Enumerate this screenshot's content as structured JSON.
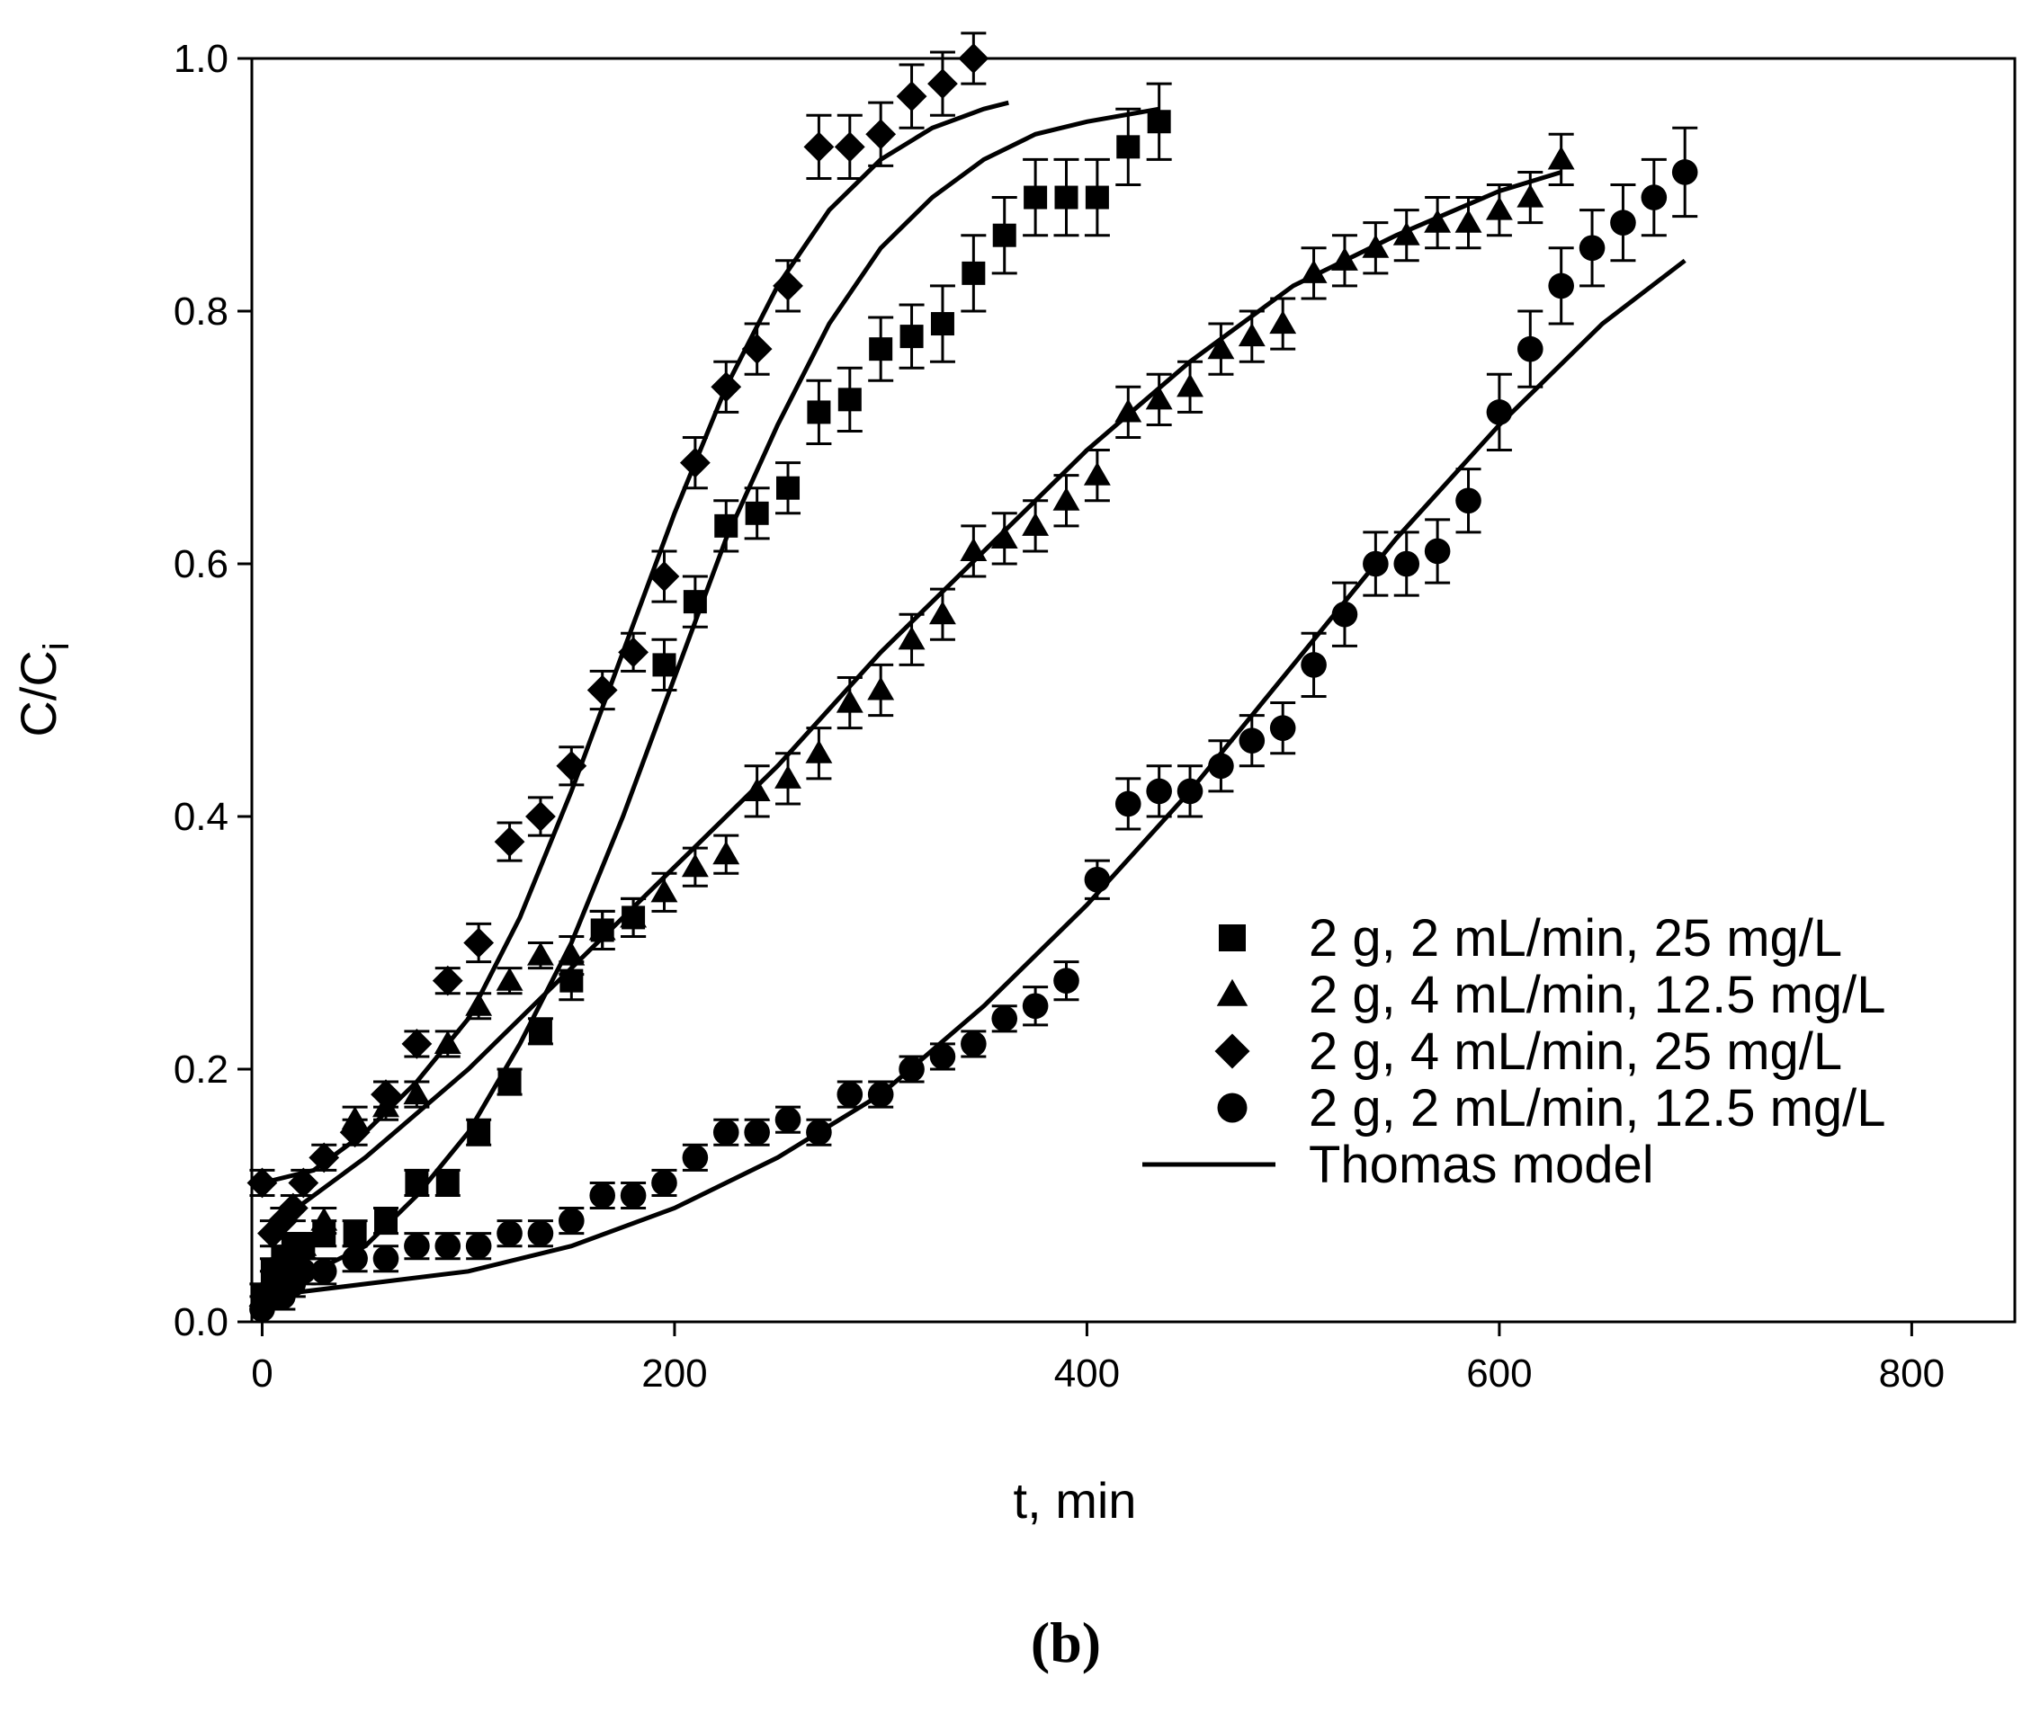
{
  "chart_data": {
    "type": "scatter",
    "panel_label": "(b)",
    "xlabel": "t, min",
    "ylabel": "C/C",
    "ylabel_subscript": "i",
    "xlim": [
      -5,
      850
    ],
    "ylim": [
      0,
      1.0
    ],
    "xticks": [
      "0",
      "200",
      "400",
      "600",
      "800"
    ],
    "xtick_values": [
      0,
      200,
      400,
      600,
      800
    ],
    "yticks": [
      "0.0",
      "0.2",
      "0.4",
      "0.6",
      "0.8",
      "1.0"
    ],
    "ytick_values": [
      0,
      0.2,
      0.4,
      0.6,
      0.8,
      1.0
    ],
    "legend_position": "bottom-right",
    "series": [
      {
        "name": "2 g, 2 mL/min, 25 mg/L",
        "marker": "square",
        "x": [
          0,
          5,
          10,
          15,
          20,
          30,
          45,
          60,
          75,
          90,
          105,
          120,
          135,
          150,
          165,
          180,
          195,
          210,
          225,
          240,
          255,
          270,
          285,
          300,
          315,
          330,
          345,
          360,
          375,
          390,
          405,
          420,
          435
        ],
        "y": [
          0.02,
          0.04,
          0.05,
          0.06,
          0.06,
          0.07,
          0.07,
          0.08,
          0.11,
          0.11,
          0.15,
          0.19,
          0.23,
          0.27,
          0.31,
          0.32,
          0.52,
          0.57,
          0.63,
          0.64,
          0.66,
          0.72,
          0.73,
          0.77,
          0.78,
          0.79,
          0.83,
          0.86,
          0.89,
          0.89,
          0.89,
          0.93,
          0.95
        ],
        "err": [
          0.01,
          0.01,
          0.01,
          0.01,
          0.01,
          0.01,
          0.01,
          0.01,
          0.01,
          0.01,
          0.01,
          0.01,
          0.01,
          0.015,
          0.015,
          0.015,
          0.02,
          0.02,
          0.02,
          0.02,
          0.02,
          0.025,
          0.025,
          0.025,
          0.025,
          0.03,
          0.03,
          0.03,
          0.03,
          0.03,
          0.03,
          0.03,
          0.03
        ]
      },
      {
        "name": "2 g, 4 mL/min, 12.5 mg/L",
        "marker": "triangle",
        "x": [
          0,
          5,
          10,
          15,
          20,
          30,
          45,
          60,
          75,
          90,
          105,
          120,
          135,
          150,
          165,
          180,
          195,
          210,
          225,
          240,
          255,
          270,
          285,
          300,
          315,
          330,
          345,
          360,
          375,
          390,
          405,
          420,
          435,
          450,
          465,
          480,
          495,
          510,
          525,
          540,
          555,
          570,
          585,
          600,
          615,
          630
        ],
        "y": [
          0.02,
          0.03,
          0.04,
          0.05,
          0.06,
          0.08,
          0.16,
          0.17,
          0.18,
          0.22,
          0.25,
          0.27,
          0.29,
          0.29,
          0.31,
          0.32,
          0.34,
          0.36,
          0.37,
          0.42,
          0.43,
          0.45,
          0.49,
          0.5,
          0.54,
          0.56,
          0.61,
          0.62,
          0.63,
          0.65,
          0.67,
          0.72,
          0.73,
          0.74,
          0.77,
          0.78,
          0.79,
          0.83,
          0.84,
          0.85,
          0.86,
          0.87,
          0.87,
          0.88,
          0.89,
          0.92
        ],
        "err": [
          0.01,
          0.01,
          0.01,
          0.01,
          0.01,
          0.01,
          0.01,
          0.01,
          0.01,
          0.01,
          0.01,
          0.01,
          0.01,
          0.015,
          0.015,
          0.015,
          0.015,
          0.015,
          0.015,
          0.02,
          0.02,
          0.02,
          0.02,
          0.02,
          0.02,
          0.02,
          0.02,
          0.02,
          0.02,
          0.02,
          0.02,
          0.02,
          0.02,
          0.02,
          0.02,
          0.02,
          0.02,
          0.02,
          0.02,
          0.02,
          0.02,
          0.02,
          0.02,
          0.02,
          0.02,
          0.02
        ]
      },
      {
        "name": "2 g, 4 mL/min, 25 mg/L",
        "marker": "diamond",
        "x": [
          0,
          5,
          10,
          15,
          20,
          30,
          45,
          60,
          75,
          90,
          105,
          120,
          135,
          150,
          165,
          180,
          195,
          210,
          225,
          240,
          255,
          270,
          285,
          300,
          315,
          330,
          345
        ],
        "y": [
          0.11,
          0.07,
          0.08,
          0.09,
          0.11,
          0.13,
          0.15,
          0.18,
          0.22,
          0.27,
          0.3,
          0.38,
          0.4,
          0.44,
          0.5,
          0.53,
          0.59,
          0.68,
          0.74,
          0.77,
          0.82,
          0.93,
          0.93,
          0.94,
          0.97,
          0.98,
          1.0
        ],
        "err": [
          0.01,
          0.01,
          0.01,
          0.01,
          0.01,
          0.01,
          0.01,
          0.01,
          0.01,
          0.01,
          0.015,
          0.015,
          0.015,
          0.015,
          0.015,
          0.015,
          0.02,
          0.02,
          0.02,
          0.02,
          0.02,
          0.025,
          0.025,
          0.025,
          0.025,
          0.025,
          0.02
        ]
      },
      {
        "name": "2 g, 2 mL/min, 12.5 mg/L",
        "marker": "circle",
        "x": [
          0,
          5,
          10,
          15,
          20,
          30,
          45,
          60,
          75,
          90,
          105,
          120,
          135,
          150,
          165,
          180,
          195,
          210,
          225,
          240,
          255,
          270,
          285,
          300,
          315,
          330,
          345,
          360,
          375,
          390,
          405,
          420,
          435,
          450,
          465,
          480,
          495,
          510,
          525,
          540,
          555,
          570,
          585,
          600,
          615,
          630,
          645,
          660,
          675,
          690
        ],
        "y": [
          0.01,
          0.02,
          0.02,
          0.03,
          0.04,
          0.04,
          0.05,
          0.05,
          0.06,
          0.06,
          0.06,
          0.07,
          0.07,
          0.08,
          0.1,
          0.1,
          0.11,
          0.13,
          0.15,
          0.15,
          0.16,
          0.15,
          0.18,
          0.18,
          0.2,
          0.21,
          0.22,
          0.24,
          0.25,
          0.27,
          0.35,
          0.41,
          0.42,
          0.42,
          0.44,
          0.46,
          0.47,
          0.52,
          0.56,
          0.6,
          0.6,
          0.61,
          0.65,
          0.72,
          0.77,
          0.82,
          0.85,
          0.87,
          0.89,
          0.91
        ],
        "err": [
          0.01,
          0.01,
          0.01,
          0.01,
          0.01,
          0.01,
          0.01,
          0.01,
          0.01,
          0.01,
          0.01,
          0.01,
          0.01,
          0.01,
          0.01,
          0.01,
          0.01,
          0.01,
          0.01,
          0.01,
          0.01,
          0.01,
          0.01,
          0.01,
          0.01,
          0.01,
          0.01,
          0.01,
          0.015,
          0.015,
          0.015,
          0.02,
          0.02,
          0.02,
          0.02,
          0.02,
          0.02,
          0.025,
          0.025,
          0.025,
          0.025,
          0.025,
          0.025,
          0.03,
          0.03,
          0.03,
          0.03,
          0.03,
          0.03,
          0.035
        ]
      }
    ],
    "model_series": {
      "name": "Thomas model",
      "curves": [
        {
          "for": "2 g, 4 mL/min, 25 mg/L",
          "x": [
            0,
            25,
            50,
            75,
            100,
            125,
            150,
            175,
            200,
            225,
            250,
            275,
            300,
            325,
            350,
            362
          ],
          "y": [
            0.11,
            0.12,
            0.15,
            0.19,
            0.24,
            0.32,
            0.42,
            0.53,
            0.64,
            0.74,
            0.82,
            0.88,
            0.92,
            0.945,
            0.96,
            0.965
          ]
        },
        {
          "for": "2 g, 2 mL/min, 25 mg/L",
          "x": [
            0,
            50,
            75,
            100,
            125,
            150,
            175,
            200,
            225,
            250,
            275,
            300,
            325,
            350,
            375,
            400,
            435
          ],
          "y": [
            0.02,
            0.06,
            0.1,
            0.15,
            0.22,
            0.3,
            0.4,
            0.51,
            0.62,
            0.71,
            0.79,
            0.85,
            0.89,
            0.92,
            0.94,
            0.95,
            0.96
          ]
        },
        {
          "for": "2 g, 4 mL/min, 12.5 mg/L",
          "x": [
            0,
            50,
            100,
            150,
            200,
            250,
            300,
            350,
            400,
            450,
            500,
            550,
            600,
            630
          ],
          "y": [
            0.07,
            0.13,
            0.2,
            0.28,
            0.36,
            0.44,
            0.53,
            0.61,
            0.69,
            0.76,
            0.82,
            0.86,
            0.895,
            0.91
          ]
        },
        {
          "for": "2 g, 2 mL/min, 12.5 mg/L",
          "x": [
            0,
            100,
            150,
            200,
            250,
            300,
            350,
            400,
            450,
            500,
            550,
            600,
            650,
            690
          ],
          "y": [
            0.02,
            0.04,
            0.06,
            0.09,
            0.13,
            0.18,
            0.25,
            0.33,
            0.42,
            0.52,
            0.62,
            0.71,
            0.79,
            0.84
          ]
        }
      ]
    }
  }
}
